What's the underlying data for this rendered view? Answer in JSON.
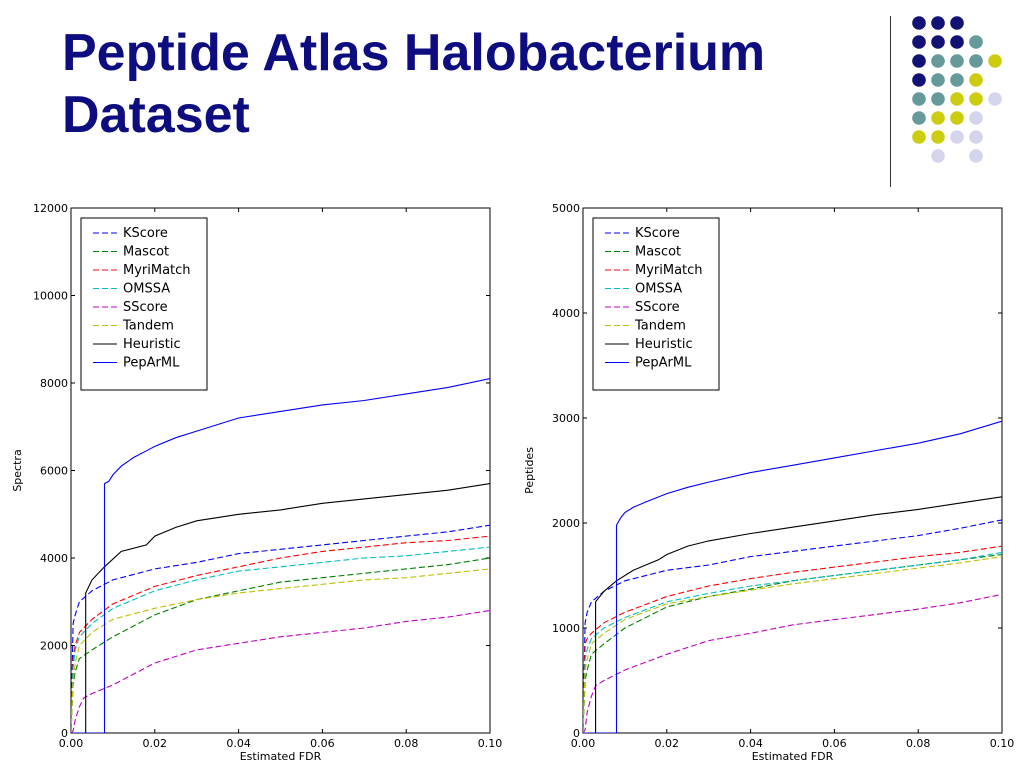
{
  "slide": {
    "title": "Peptide Atlas Halobacterium Dataset",
    "accent_color": "#0d0d80",
    "decoration": {
      "dot_colors": {
        "navy": "#121274",
        "teal": "#669999",
        "yellow": "#cccc11",
        "lavender": "#d4d4ec"
      },
      "grid": [
        [
          "navy",
          "navy",
          "navy",
          null,
          null
        ],
        [
          "navy",
          "navy",
          "navy",
          "teal",
          null
        ],
        [
          "navy",
          "teal",
          "teal",
          "teal",
          "yellow"
        ],
        [
          "navy",
          "teal",
          "teal",
          "yellow",
          null
        ],
        [
          "teal",
          "teal",
          "yellow",
          "yellow",
          "lavender"
        ],
        [
          "teal",
          "yellow",
          "yellow",
          "lavender",
          null
        ],
        [
          "yellow",
          "yellow",
          "lavender",
          "lavender",
          null
        ],
        [
          null,
          "lavender",
          null,
          "lavender",
          null
        ]
      ]
    }
  },
  "chart_data": [
    {
      "type": "line",
      "xlabel": "Estimated FDR",
      "ylabel": "Spectra",
      "xlim": [
        0,
        0.1
      ],
      "ylim": [
        0,
        12000
      ],
      "xticks": [
        0,
        0.02,
        0.04,
        0.06,
        0.08,
        0.1
      ],
      "xtick_labels": [
        "0.00",
        "0.02",
        "0.04",
        "0.06",
        "0.08",
        "0.10"
      ],
      "yticks": [
        0,
        2000,
        4000,
        6000,
        8000,
        10000,
        12000
      ],
      "ytick_labels": [
        "0",
        "2000",
        "4000",
        "6000",
        "8000",
        "10000",
        "12000"
      ],
      "legend_position": "top-left",
      "series": [
        {
          "name": "KScore",
          "color": "#0000ff",
          "dashed": true,
          "x": [
            0,
            0.0005,
            0.001,
            0.002,
            0.005,
            0.01,
            0.02,
            0.03,
            0.04,
            0.05,
            0.06,
            0.07,
            0.08,
            0.09,
            0.1
          ],
          "y": [
            0,
            2500,
            2700,
            3000,
            3250,
            3500,
            3750,
            3900,
            4100,
            4200,
            4300,
            4400,
            4500,
            4600,
            4750
          ]
        },
        {
          "name": "Mascot",
          "color": "#008000",
          "dashed": true,
          "x": [
            0,
            0.0005,
            0.001,
            0.002,
            0.005,
            0.01,
            0.02,
            0.03,
            0.04,
            0.05,
            0.06,
            0.07,
            0.08,
            0.09,
            0.1
          ],
          "y": [
            0,
            1100,
            1400,
            1700,
            1900,
            2200,
            2700,
            3050,
            3250,
            3450,
            3550,
            3650,
            3750,
            3850,
            4000
          ]
        },
        {
          "name": "MyriMatch",
          "color": "#ff0000",
          "dashed": true,
          "x": [
            0,
            0.0005,
            0.001,
            0.002,
            0.005,
            0.01,
            0.02,
            0.03,
            0.04,
            0.05,
            0.06,
            0.07,
            0.08,
            0.09,
            0.1
          ],
          "y": [
            0,
            1700,
            2000,
            2300,
            2600,
            2950,
            3350,
            3600,
            3800,
            4000,
            4150,
            4250,
            4350,
            4400,
            4500
          ]
        },
        {
          "name": "OMSSA",
          "color": "#00bfbf",
          "dashed": true,
          "x": [
            0,
            0.0005,
            0.001,
            0.002,
            0.005,
            0.01,
            0.02,
            0.03,
            0.04,
            0.05,
            0.06,
            0.07,
            0.08,
            0.09,
            0.1
          ],
          "y": [
            0,
            1500,
            1900,
            2200,
            2500,
            2850,
            3250,
            3500,
            3700,
            3800,
            3900,
            4000,
            4050,
            4150,
            4250
          ]
        },
        {
          "name": "SScore",
          "color": "#bf00bf",
          "dashed": true,
          "x": [
            0,
            0.0005,
            0.001,
            0.002,
            0.003,
            0.005,
            0.01,
            0.02,
            0.03,
            0.04,
            0.05,
            0.06,
            0.07,
            0.08,
            0.09,
            0.1
          ],
          "y": [
            0,
            50,
            300,
            600,
            800,
            900,
            1100,
            1600,
            1900,
            2050,
            2200,
            2300,
            2400,
            2550,
            2650,
            2800
          ]
        },
        {
          "name": "Tandem",
          "color": "#bfbf00",
          "dashed": true,
          "x": [
            0,
            0.0005,
            0.001,
            0.002,
            0.005,
            0.01,
            0.02,
            0.03,
            0.04,
            0.05,
            0.06,
            0.07,
            0.08,
            0.09,
            0.1
          ],
          "y": [
            0,
            1200,
            1600,
            2000,
            2300,
            2600,
            2850,
            3050,
            3200,
            3300,
            3400,
            3500,
            3550,
            3650,
            3750
          ]
        },
        {
          "name": "Heuristic",
          "color": "#000000",
          "dashed": false,
          "x": [
            0,
            0.0035,
            0.0035,
            0.005,
            0.008,
            0.012,
            0.018,
            0.02,
            0.025,
            0.03,
            0.04,
            0.05,
            0.06,
            0.07,
            0.08,
            0.09,
            0.1
          ],
          "y": [
            0,
            0,
            3200,
            3500,
            3800,
            4150,
            4300,
            4500,
            4700,
            4850,
            5000,
            5100,
            5250,
            5350,
            5450,
            5550,
            5700
          ]
        },
        {
          "name": "PepArML",
          "color": "#0000ff",
          "dashed": false,
          "x": [
            0,
            0.008,
            0.008,
            0.009,
            0.01,
            0.012,
            0.015,
            0.018,
            0.02,
            0.025,
            0.03,
            0.04,
            0.05,
            0.06,
            0.07,
            0.08,
            0.09,
            0.1
          ],
          "y": [
            0,
            0,
            5700,
            5750,
            5900,
            6100,
            6300,
            6450,
            6550,
            6750,
            6900,
            7200,
            7350,
            7500,
            7600,
            7750,
            7900,
            8100
          ]
        }
      ]
    },
    {
      "type": "line",
      "xlabel": "Estimated FDR",
      "ylabel": "Peptides",
      "xlim": [
        0,
        0.1
      ],
      "ylim": [
        0,
        5000
      ],
      "xticks": [
        0,
        0.02,
        0.04,
        0.06,
        0.08,
        0.1
      ],
      "xtick_labels": [
        "0.00",
        "0.02",
        "0.04",
        "0.06",
        "0.08",
        "0.10"
      ],
      "yticks": [
        0,
        1000,
        2000,
        3000,
        4000,
        5000
      ],
      "ytick_labels": [
        "0",
        "1000",
        "2000",
        "3000",
        "4000",
        "5000"
      ],
      "legend_position": "top-left",
      "series": [
        {
          "name": "KScore",
          "color": "#0000ff",
          "dashed": true,
          "x": [
            0,
            0.0005,
            0.001,
            0.002,
            0.005,
            0.01,
            0.02,
            0.03,
            0.04,
            0.05,
            0.06,
            0.07,
            0.08,
            0.09,
            0.1
          ],
          "y": [
            0,
            1050,
            1150,
            1250,
            1350,
            1450,
            1550,
            1600,
            1680,
            1730,
            1780,
            1830,
            1880,
            1950,
            2030
          ]
        },
        {
          "name": "Mascot",
          "color": "#008000",
          "dashed": true,
          "x": [
            0,
            0.0005,
            0.001,
            0.002,
            0.005,
            0.01,
            0.02,
            0.03,
            0.04,
            0.05,
            0.06,
            0.07,
            0.08,
            0.09,
            0.1
          ],
          "y": [
            0,
            500,
            600,
            750,
            850,
            1000,
            1200,
            1300,
            1370,
            1450,
            1500,
            1550,
            1600,
            1650,
            1700
          ]
        },
        {
          "name": "MyriMatch",
          "color": "#ff0000",
          "dashed": true,
          "x": [
            0,
            0.0005,
            0.001,
            0.002,
            0.005,
            0.01,
            0.02,
            0.03,
            0.04,
            0.05,
            0.06,
            0.07,
            0.08,
            0.09,
            0.1
          ],
          "y": [
            0,
            850,
            900,
            950,
            1050,
            1150,
            1300,
            1400,
            1470,
            1530,
            1580,
            1630,
            1680,
            1720,
            1780
          ]
        },
        {
          "name": "OMSSA",
          "color": "#00bfbf",
          "dashed": true,
          "x": [
            0,
            0.0005,
            0.001,
            0.002,
            0.005,
            0.01,
            0.02,
            0.03,
            0.04,
            0.05,
            0.06,
            0.07,
            0.08,
            0.09,
            0.1
          ],
          "y": [
            0,
            700,
            800,
            900,
            1000,
            1100,
            1250,
            1330,
            1400,
            1450,
            1500,
            1550,
            1600,
            1650,
            1720
          ]
        },
        {
          "name": "SScore",
          "color": "#bf00bf",
          "dashed": true,
          "x": [
            0,
            0.0005,
            0.001,
            0.002,
            0.003,
            0.005,
            0.01,
            0.02,
            0.03,
            0.04,
            0.05,
            0.06,
            0.07,
            0.08,
            0.09,
            0.1
          ],
          "y": [
            0,
            30,
            200,
            350,
            450,
            500,
            600,
            750,
            880,
            950,
            1030,
            1080,
            1130,
            1180,
            1240,
            1320
          ]
        },
        {
          "name": "Tandem",
          "color": "#bfbf00",
          "dashed": true,
          "x": [
            0,
            0.0005,
            0.001,
            0.002,
            0.005,
            0.01,
            0.02,
            0.03,
            0.04,
            0.05,
            0.06,
            0.07,
            0.08,
            0.09,
            0.1
          ],
          "y": [
            0,
            600,
            700,
            850,
            950,
            1080,
            1230,
            1300,
            1360,
            1420,
            1470,
            1520,
            1570,
            1620,
            1680
          ]
        },
        {
          "name": "Heuristic",
          "color": "#000000",
          "dashed": false,
          "x": [
            0,
            0.003,
            0.003,
            0.005,
            0.008,
            0.012,
            0.018,
            0.02,
            0.025,
            0.03,
            0.04,
            0.05,
            0.06,
            0.07,
            0.08,
            0.09,
            0.1
          ],
          "y": [
            0,
            0,
            1250,
            1350,
            1450,
            1550,
            1650,
            1700,
            1780,
            1830,
            1900,
            1960,
            2020,
            2080,
            2130,
            2190,
            2250
          ]
        },
        {
          "name": "PepArML",
          "color": "#0000ff",
          "dashed": false,
          "x": [
            0,
            0.008,
            0.008,
            0.009,
            0.01,
            0.012,
            0.015,
            0.02,
            0.025,
            0.03,
            0.04,
            0.05,
            0.06,
            0.07,
            0.08,
            0.09,
            0.1
          ],
          "y": [
            0,
            0,
            1980,
            2050,
            2100,
            2150,
            2200,
            2280,
            2340,
            2390,
            2480,
            2550,
            2620,
            2690,
            2760,
            2850,
            2970
          ]
        }
      ]
    }
  ]
}
